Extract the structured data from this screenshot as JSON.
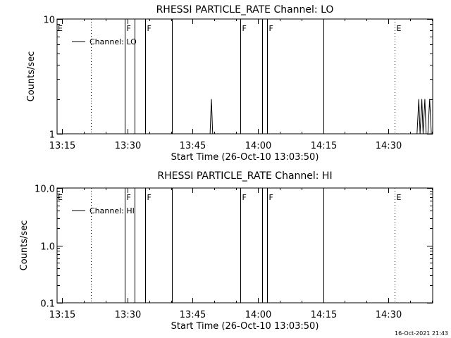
{
  "footer_timestamp": "16-Oct-2021 21:43",
  "chart_data": [
    {
      "type": "line",
      "title": "RHESSI PARTICLE_RATE Channel: LO",
      "xlabel": "Start Time (26-Oct-10 13:03:50)",
      "ylabel": "Counts/sec",
      "yscale": "log",
      "ylim": [
        1,
        10
      ],
      "ytick_values": [
        1,
        10
      ],
      "ytick_labels": [
        "1",
        "10"
      ],
      "xlim_minutes": [
        13.8,
        100.2
      ],
      "xtick_labels": [
        "13:15",
        "13:30",
        "13:45",
        "14:00",
        "14:15",
        "14:30"
      ],
      "xtick_minutes": [
        15,
        30,
        45,
        60,
        75,
        90
      ],
      "legend": {
        "position": "top-left",
        "label": "Channel: LO"
      },
      "event_lines": [
        {
          "minute": 5.8,
          "style": "solid",
          "label": "E"
        },
        {
          "minute": 21.5,
          "style": "dotted",
          "label": ""
        },
        {
          "minute": 29.3,
          "style": "solid",
          "label": "F"
        },
        {
          "minute": 31.7,
          "style": "solid",
          "label": ""
        },
        {
          "minute": 34.1,
          "style": "solid",
          "label": "F"
        },
        {
          "minute": 40.3,
          "style": "solid",
          "label": ""
        },
        {
          "minute": 56.0,
          "style": "solid",
          "label": "F"
        },
        {
          "minute": 60.9,
          "style": "solid",
          "label": ""
        },
        {
          "minute": 62.1,
          "style": "solid",
          "label": "F"
        },
        {
          "minute": 75.1,
          "style": "solid",
          "label": ""
        },
        {
          "minute": 91.4,
          "style": "dotted",
          "label": "E"
        },
        {
          "minute": 105.9,
          "style": "dotted",
          "label": ""
        }
      ],
      "series": [
        {
          "name": "Channel: LO",
          "x_minutes": [
            48.5,
            49.0,
            49.3,
            49.6,
            50.1,
            96.6,
            97.0,
            97.3,
            97.7,
            98.0,
            98.4,
            98.7,
            99.1,
            99.5,
            99.9,
            100.2
          ],
          "y": [
            1,
            1,
            2,
            1,
            1,
            1,
            2,
            1,
            2,
            1,
            2,
            1,
            1,
            2,
            1,
            1
          ]
        }
      ]
    },
    {
      "type": "line",
      "title": "RHESSI PARTICLE_RATE Channel: HI",
      "xlabel": "Start Time (26-Oct-10 13:03:50)",
      "ylabel": "Counts/sec",
      "yscale": "log",
      "ylim": [
        0.1,
        10
      ],
      "ytick_values": [
        0.1,
        1,
        10
      ],
      "ytick_labels": [
        "0.1",
        "1.0",
        "10.0"
      ],
      "xlim_minutes": [
        13.8,
        100.2
      ],
      "xtick_labels": [
        "13:15",
        "13:30",
        "13:45",
        "14:00",
        "14:15",
        "14:30"
      ],
      "xtick_minutes": [
        15,
        30,
        45,
        60,
        75,
        90
      ],
      "legend": {
        "position": "top-left",
        "label": "Channel: HI"
      },
      "event_lines": [
        {
          "minute": 5.8,
          "style": "solid",
          "label": "E"
        },
        {
          "minute": 21.5,
          "style": "dotted",
          "label": ""
        },
        {
          "minute": 29.3,
          "style": "solid",
          "label": "F"
        },
        {
          "minute": 31.7,
          "style": "solid",
          "label": ""
        },
        {
          "minute": 34.1,
          "style": "solid",
          "label": "F"
        },
        {
          "minute": 40.3,
          "style": "solid",
          "label": ""
        },
        {
          "minute": 56.0,
          "style": "solid",
          "label": "F"
        },
        {
          "minute": 60.9,
          "style": "solid",
          "label": ""
        },
        {
          "minute": 62.1,
          "style": "solid",
          "label": "F"
        },
        {
          "minute": 75.1,
          "style": "solid",
          "label": ""
        },
        {
          "minute": 91.4,
          "style": "dotted",
          "label": "E"
        },
        {
          "minute": 105.9,
          "style": "dotted",
          "label": ""
        }
      ],
      "series": []
    }
  ]
}
